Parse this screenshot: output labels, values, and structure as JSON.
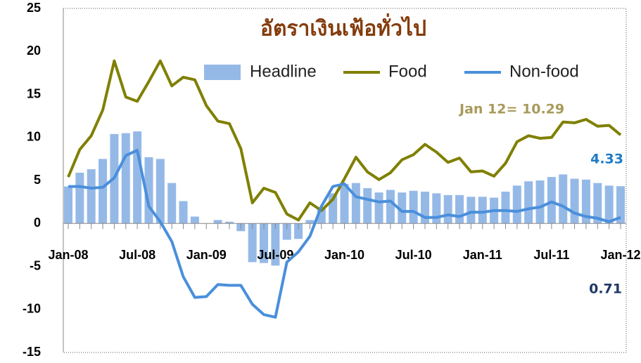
{
  "chart_data": {
    "type": "bar",
    "title": "อัตราเงินเฟ้อทั่วไป",
    "categories": [
      "Jan-08",
      null,
      null,
      null,
      null,
      null,
      "Jul-08",
      null,
      null,
      null,
      null,
      null,
      "Jan-09",
      null,
      null,
      null,
      null,
      null,
      "Jul-09",
      null,
      null,
      null,
      null,
      null,
      "Jan-10",
      null,
      null,
      null,
      null,
      null,
      "Jul-10",
      null,
      null,
      null,
      null,
      null,
      "Jan-11",
      null,
      null,
      null,
      null,
      null,
      "Jul-11",
      null,
      null,
      null,
      null,
      null,
      "Jan-12"
    ],
    "series": [
      {
        "name": "Headline",
        "type": "bar",
        "color": "#95b9e7",
        "values": [
          4.3,
          5.9,
          6.3,
          7.5,
          10.4,
          10.5,
          10.7,
          7.7,
          7.5,
          4.7,
          2.6,
          0.8,
          0.0,
          0.4,
          0.2,
          -0.9,
          -4.5,
          -4.6,
          -4.9,
          -1.9,
          -1.8,
          0.4,
          1.9,
          3.5,
          4.6,
          4.7,
          4.1,
          3.6,
          3.9,
          3.6,
          3.8,
          3.7,
          3.5,
          3.3,
          3.3,
          3.1,
          3.1,
          3.0,
          3.7,
          4.4,
          4.9,
          5.0,
          5.4,
          5.7,
          5.2,
          5.1,
          4.7,
          4.4,
          4.33
        ]
      },
      {
        "name": "Food",
        "type": "line",
        "color": "#7f8000",
        "values": [
          5.4,
          8.6,
          10.2,
          13.2,
          18.9,
          14.7,
          14.2,
          16.5,
          18.9,
          16.0,
          17.0,
          16.7,
          13.7,
          11.9,
          11.6,
          8.7,
          2.4,
          4.1,
          3.6,
          1.1,
          0.4,
          2.4,
          1.5,
          2.8,
          5.2,
          7.7,
          6.0,
          5.1,
          5.9,
          7.4,
          8.0,
          9.2,
          8.3,
          7.1,
          7.6,
          6.0,
          6.1,
          5.5,
          7.0,
          9.5,
          10.2,
          9.9,
          10.0,
          11.8,
          11.7,
          12.1,
          11.3,
          11.4,
          10.29
        ]
      },
      {
        "name": "Non-food",
        "type": "line",
        "color": "#4a8fdc",
        "values": [
          4.3,
          4.3,
          4.1,
          4.2,
          5.3,
          7.9,
          8.5,
          2.0,
          0.2,
          -2.1,
          -6.2,
          -8.6,
          -8.5,
          -7.1,
          -7.2,
          -7.2,
          -9.4,
          -10.6,
          -10.9,
          -4.5,
          -3.3,
          -1.5,
          2.0,
          4.3,
          4.6,
          3.1,
          2.8,
          2.5,
          2.6,
          1.4,
          1.4,
          0.7,
          0.7,
          1.0,
          0.8,
          1.3,
          1.3,
          1.5,
          1.5,
          1.4,
          1.7,
          1.9,
          2.5,
          2.0,
          1.2,
          0.8,
          0.6,
          0.2,
          0.71
        ]
      }
    ],
    "ylim": [
      -15,
      25
    ],
    "yticks": [
      -15,
      -10,
      -5,
      0,
      5,
      10,
      15,
      20,
      25
    ],
    "annotations": [
      {
        "text": "Jan 12= 10.29",
        "color": "#a89a5a"
      },
      {
        "text": "4.33",
        "color": "#1f7ac4"
      },
      {
        "text": "0.71",
        "color": "#1f3864"
      }
    ]
  }
}
